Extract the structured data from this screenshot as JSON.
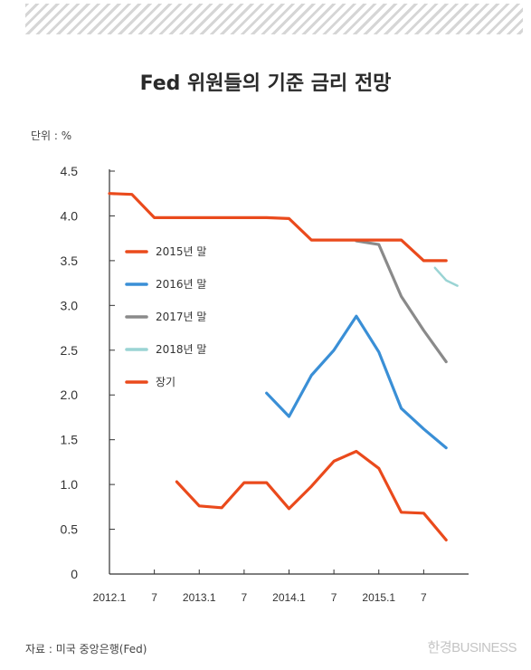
{
  "header": {
    "title": "Fed 위원들의 기준 금리 전망",
    "unit": "단위 : %"
  },
  "footer": {
    "source": "자료 : 미국 중앙은행(Fed)",
    "logo_text": "한경BUSINESS"
  },
  "chart_data": {
    "type": "line",
    "title": "Fed 위원들의 기준 금리 전망",
    "ylabel": "단위 : %",
    "ylim": [
      0,
      4.5
    ],
    "y_ticks": [
      "0",
      "0.5",
      "1.0",
      "1.5",
      "2.0",
      "2.5",
      "3.0",
      "3.5",
      "4.0",
      "4.5"
    ],
    "x_ticks": [
      "2012.1",
      "7",
      "2013.1",
      "7",
      "2014.1",
      "7",
      "2015.1",
      "7"
    ],
    "x_tick_index": [
      0,
      2,
      4,
      6,
      8,
      10,
      12,
      14
    ],
    "grid": false,
    "legend_placement": "left-middle",
    "series": [
      {
        "name": "2015년 말",
        "color": "#ea4a1c",
        "x": [
          3,
          4,
          5,
          6,
          7,
          8,
          9,
          10,
          11,
          12,
          13,
          14,
          15
        ],
        "values": [
          1.03,
          0.76,
          0.74,
          1.02,
          1.02,
          0.73,
          0.98,
          1.26,
          1.37,
          1.18,
          0.69,
          0.68,
          0.38
        ]
      },
      {
        "name": "2016년 말",
        "color": "#3a8fd6",
        "x": [
          7,
          8,
          9,
          10,
          11,
          12,
          13,
          14,
          15
        ],
        "values": [
          2.02,
          1.76,
          2.22,
          2.5,
          2.88,
          2.48,
          1.85,
          1.62,
          1.41
        ]
      },
      {
        "name": "2017년 말",
        "color": "#8a8a8a",
        "x": [
          11,
          12,
          13,
          14,
          15
        ],
        "values": [
          3.72,
          3.68,
          3.1,
          2.72,
          2.37
        ]
      },
      {
        "name": "2018년 말",
        "color": "#9ad4d4",
        "x": [
          14.5,
          15,
          15.5
        ],
        "values": [
          3.42,
          3.28,
          3.22
        ]
      },
      {
        "name": "장기",
        "color": "#ea4a1c",
        "x": [
          0,
          1,
          2,
          3,
          4,
          5,
          6,
          7,
          8,
          9,
          10,
          11,
          12,
          13,
          14,
          15
        ],
        "values": [
          4.25,
          4.24,
          3.98,
          3.98,
          3.98,
          3.98,
          3.98,
          3.98,
          3.97,
          3.73,
          3.73,
          3.73,
          3.73,
          3.73,
          3.5,
          3.5
        ]
      }
    ]
  }
}
